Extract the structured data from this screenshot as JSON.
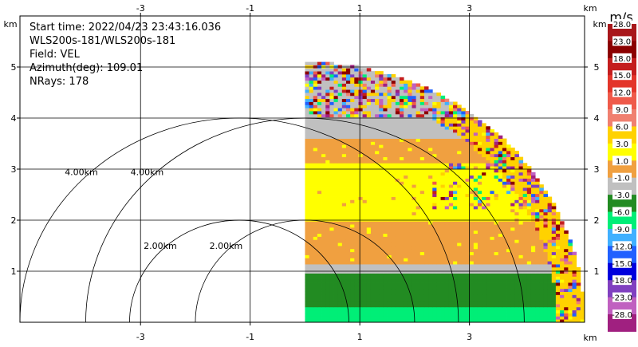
{
  "info": {
    "start_time": "Start time: 2022/04/23 23:43:16.036",
    "instrument": "WLS200s-181/WLS200s-181",
    "field": "Field: VEL",
    "azimuth": "Azimuth(deg): 109.01",
    "nrays": "NRays: 178"
  },
  "chart_data": {
    "type": "heatmap",
    "title": "",
    "xlabel": "km",
    "ylabel": "km",
    "xlim": [
      -5.2,
      5.1
    ],
    "ylim": [
      0,
      6
    ],
    "x_ticks": [
      "-3",
      "-1",
      "1",
      "3"
    ],
    "x_tick_values": [
      -3,
      -1,
      1,
      3
    ],
    "y_ticks": [
      "1",
      "2",
      "3",
      "4",
      "5"
    ],
    "y_tick_values": [
      1,
      2,
      3,
      4,
      5
    ],
    "grid": true,
    "scan_extent": {
      "x_min": 0.0,
      "range_max_km": 5.1
    },
    "range_rings": [
      {
        "center": [
          -1.2,
          0
        ],
        "radius_km": 2.0,
        "label": "2.00km"
      },
      {
        "center": [
          0.0,
          0
        ],
        "radius_km": 2.0,
        "label": "2.00km"
      },
      {
        "center": [
          -1.2,
          0
        ],
        "radius_km": 4.0,
        "label": "4.00km"
      },
      {
        "center": [
          0.0,
          0
        ],
        "radius_km": 4.0,
        "label": "4.00km"
      }
    ],
    "layers": [
      {
        "y_from": 0.0,
        "y_to": 0.28,
        "value": -6.0
      },
      {
        "y_from": 0.28,
        "y_to": 0.95,
        "value": -3.0
      },
      {
        "y_from": 0.95,
        "y_to": 1.15,
        "value": -1.0
      },
      {
        "y_from": 1.15,
        "y_to": 2.0,
        "value": 1.0
      },
      {
        "y_from": 2.0,
        "y_to": 3.1,
        "value": 3.0
      },
      {
        "y_from": 3.1,
        "y_to": 3.6,
        "value": 1.0
      },
      {
        "y_from": 3.6,
        "y_to": 4.0,
        "value": -1.0
      },
      {
        "y_from": 4.0,
        "y_to": 5.1,
        "value": "noisy"
      }
    ],
    "colorbar": {
      "unit": "m/s",
      "labels": [
        "28.0",
        "23.0",
        "18.0",
        "15.0",
        "12.0",
        "9.0",
        "6.0",
        "3.0",
        "1.0",
        "-1.0",
        "-3.0",
        "-6.0",
        "-9.0",
        "-12.0",
        "-15.0",
        "-18.0",
        "-23.0",
        "-28.0"
      ],
      "colors": [
        "#ffffff",
        "#a8171b",
        "#8b0000",
        "#c41e1e",
        "#e3352a",
        "#ef5a4a",
        "#f08070",
        "#ffd200",
        "#ffff00",
        "#f0a040",
        "#c0c0c0",
        "#228b22",
        "#00ee77",
        "#40b0ff",
        "#2060ff",
        "#0000dd",
        "#8040c0",
        "#c060c0",
        "#a02080"
      ]
    }
  }
}
